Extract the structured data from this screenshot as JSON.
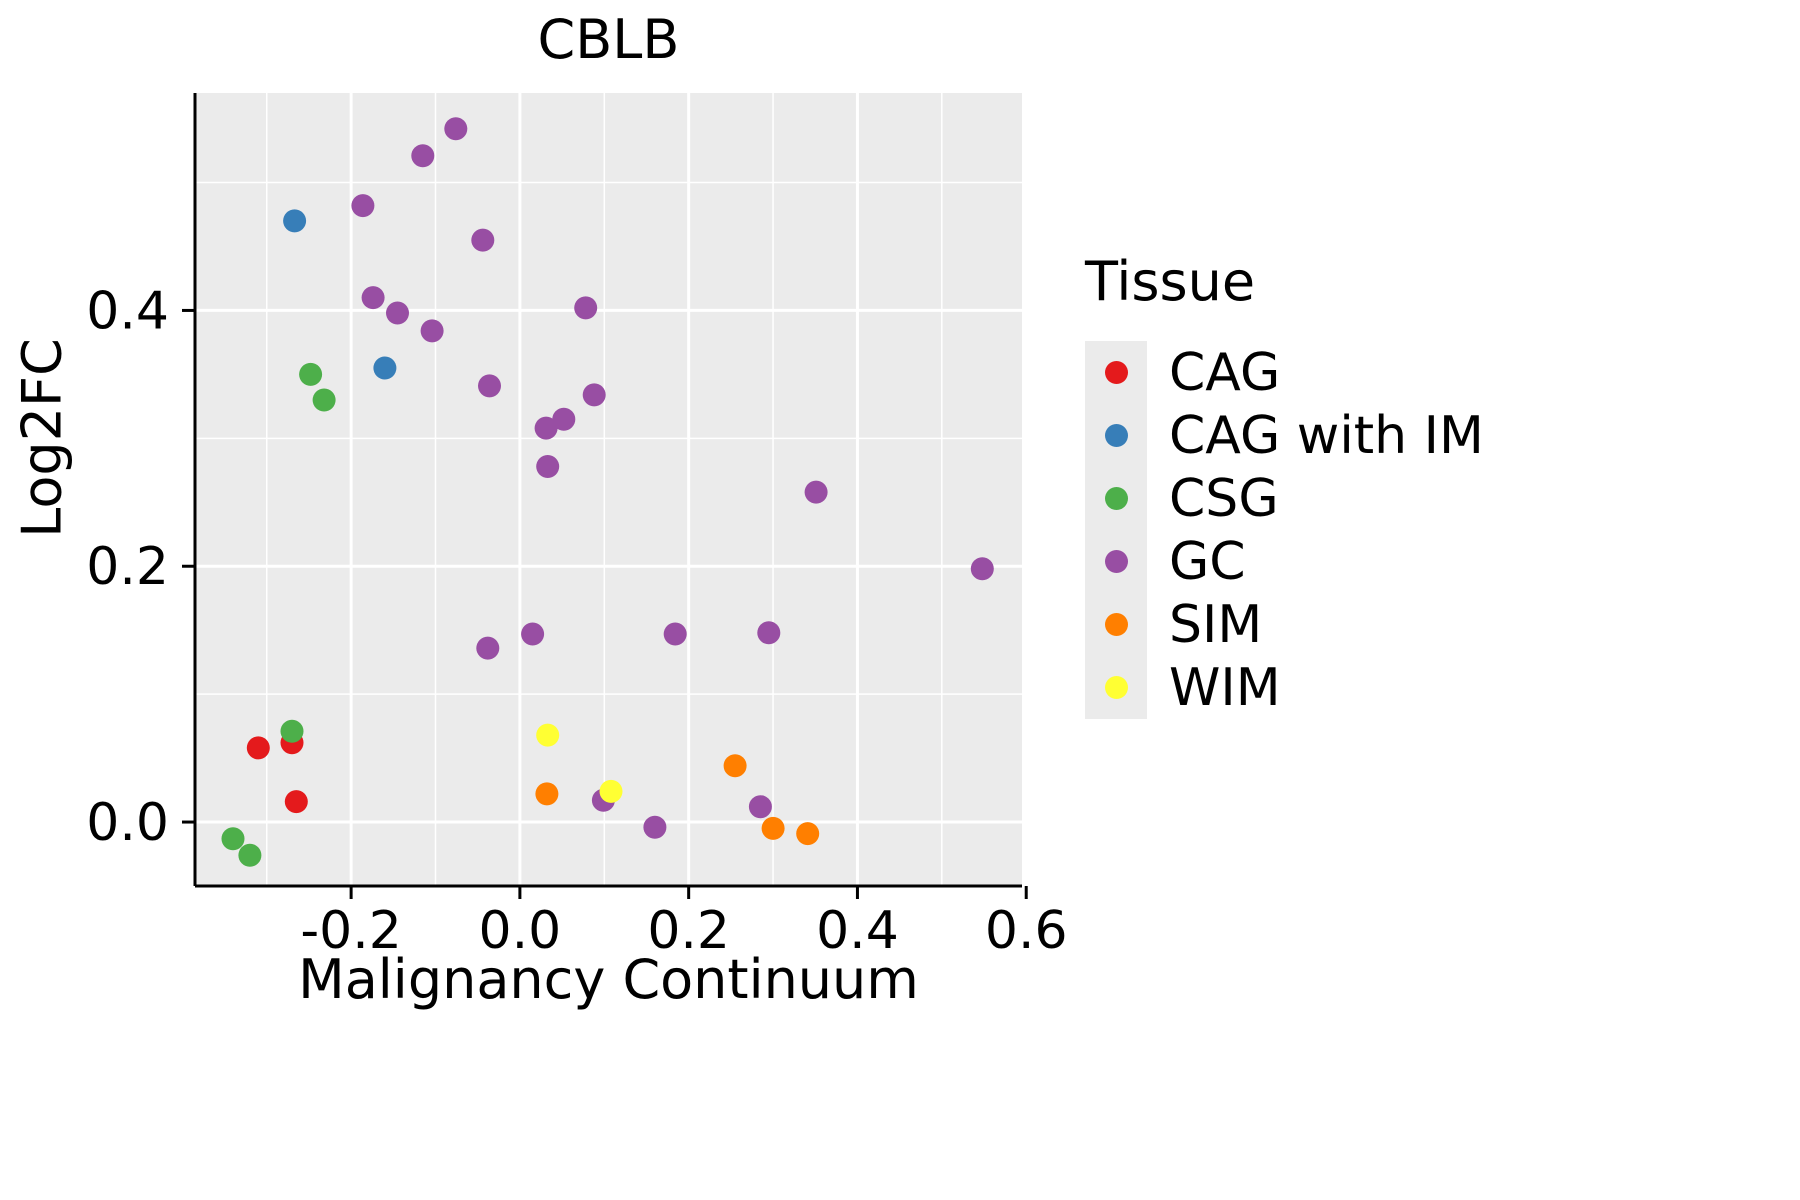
{
  "chart_data": {
    "type": "scatter",
    "title": "CBLB",
    "xlabel": "Malignancy Continuum",
    "ylabel": "Log2FC",
    "legend_title": "Tissue",
    "legend_position": "right",
    "grid": true,
    "panel_color": "#EBEBEB",
    "grid_color": "#FFFFFF",
    "axis_color": "#000000",
    "xlim": [
      -0.385,
      0.595
    ],
    "ylim": [
      -0.05,
      0.57
    ],
    "x_major_ticks": [
      -0.2,
      0.0,
      0.2,
      0.4,
      0.6
    ],
    "x_tick_labels": [
      "-0.2",
      "0.0",
      "0.2",
      "0.4",
      "0.6"
    ],
    "x_minor_ticks": [
      -0.3,
      -0.1,
      0.1,
      0.3,
      0.5
    ],
    "y_major_ticks": [
      0.0,
      0.2,
      0.4
    ],
    "y_tick_labels": [
      "0.0",
      "0.2",
      "0.4"
    ],
    "y_minor_ticks": [
      0.1,
      0.3,
      0.5
    ],
    "series": [
      {
        "name": "CAG",
        "color": "#E41A1C",
        "points": [
          [
            -0.31,
            0.058
          ],
          [
            -0.27,
            0.062
          ],
          [
            -0.265,
            0.016
          ]
        ]
      },
      {
        "name": "CAG with IM",
        "color": "#377EB8",
        "points": [
          [
            -0.267,
            0.47
          ],
          [
            -0.16,
            0.355
          ]
        ]
      },
      {
        "name": "CSG",
        "color": "#4DAF4A",
        "points": [
          [
            -0.248,
            0.35
          ],
          [
            -0.232,
            0.33
          ],
          [
            -0.27,
            0.071
          ],
          [
            -0.34,
            -0.013
          ],
          [
            -0.32,
            -0.026
          ]
        ]
      },
      {
        "name": "GC",
        "color": "#984EA3",
        "points": [
          [
            -0.076,
            0.542
          ],
          [
            -0.115,
            0.521
          ],
          [
            -0.186,
            0.482
          ],
          [
            -0.044,
            0.455
          ],
          [
            -0.174,
            0.41
          ],
          [
            -0.145,
            0.398
          ],
          [
            -0.104,
            0.384
          ],
          [
            0.078,
            0.402
          ],
          [
            -0.036,
            0.341
          ],
          [
            0.088,
            0.334
          ],
          [
            0.052,
            0.315
          ],
          [
            0.031,
            0.308
          ],
          [
            0.033,
            0.278
          ],
          [
            0.351,
            0.258
          ],
          [
            0.548,
            0.198
          ],
          [
            -0.038,
            0.136
          ],
          [
            0.015,
            0.147
          ],
          [
            0.184,
            0.147
          ],
          [
            0.295,
            0.148
          ],
          [
            0.099,
            0.017
          ],
          [
            0.16,
            -0.004
          ],
          [
            0.285,
            0.012
          ]
        ]
      },
      {
        "name": "SIM",
        "color": "#FF7F00",
        "points": [
          [
            0.032,
            0.022
          ],
          [
            0.255,
            0.044
          ],
          [
            0.3,
            -0.005
          ],
          [
            0.341,
            -0.009
          ]
        ]
      },
      {
        "name": "WIM",
        "color": "#FFFF33",
        "points": [
          [
            0.033,
            0.068
          ],
          [
            0.108,
            0.024
          ]
        ]
      }
    ]
  }
}
